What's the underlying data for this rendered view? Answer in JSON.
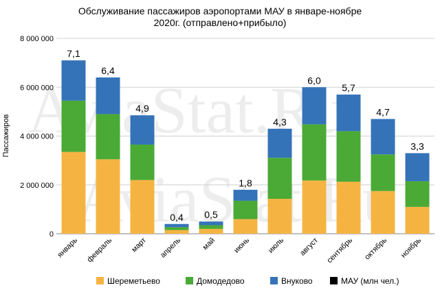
{
  "chart_data": {
    "type": "bar",
    "stacked": true,
    "title_line1": "Обслуживание пассажиров аэропортами МАУ в январе-ноябре",
    "title_line2": "2020г. (отправлено+прибыло)",
    "ylabel": "Пассажиров",
    "xlabel": "",
    "ylim": [
      0,
      8000000
    ],
    "yticks": [
      0,
      2000000,
      4000000,
      6000000,
      8000000
    ],
    "ytick_labels": [
      "0",
      "2 000 000",
      "4 000 000",
      "6 000 000",
      "8 000 000"
    ],
    "grid": true,
    "legend_position": "bottom",
    "categories": [
      "январь",
      "февраль",
      "март",
      "апрель",
      "май",
      "июнь",
      "июль",
      "август",
      "сентябрь",
      "октябрь",
      "ноябрь"
    ],
    "series": [
      {
        "name": "Шереметьево",
        "color": "#F5B442",
        "values": [
          3350000,
          3050000,
          2200000,
          150000,
          200000,
          600000,
          1430000,
          2180000,
          2130000,
          1750000,
          1100000
        ]
      },
      {
        "name": "Домодедово",
        "color": "#4AAA35",
        "values": [
          2100000,
          1850000,
          1450000,
          120000,
          150000,
          750000,
          1680000,
          2300000,
          2070000,
          1500000,
          1050000
        ]
      },
      {
        "name": "Внуково",
        "color": "#3573B9",
        "values": [
          1650000,
          1500000,
          1200000,
          130000,
          150000,
          450000,
          1190000,
          1520000,
          1500000,
          1450000,
          1150000
        ]
      },
      {
        "name": "МАУ (млн чел.)",
        "color": "#000000",
        "values": [
          7.1,
          6.4,
          4.9,
          0.4,
          0.5,
          1.8,
          4.3,
          6.0,
          5.7,
          4.7,
          3.3
        ]
      }
    ],
    "data_labels": [
      "7,1",
      "6,4",
      "4,9",
      "0,4",
      "0,5",
      "1,8",
      "4,3",
      "6,0",
      "5,7",
      "4,7",
      "3,3"
    ]
  },
  "watermark": "AviaStat.Ru"
}
